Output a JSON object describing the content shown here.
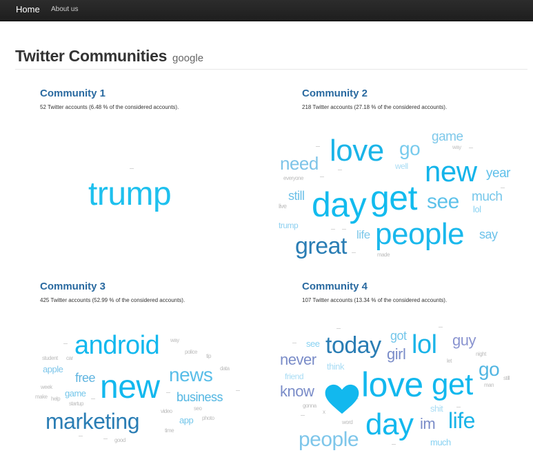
{
  "nav": {
    "home": "Home",
    "about": "About us"
  },
  "header": {
    "title": "Twitter Communities",
    "subtitle": "google"
  },
  "description_template": "Twitter accounts ({pct} % of the considered accounts).",
  "communities": [
    {
      "title": "Community 1",
      "accounts": "52",
      "percent": "6.48",
      "description": "52 Twitter accounts (6.48 % of the considered accounts).",
      "words": [
        {
          "text": "trump",
          "color": "#1ec0ee"
        }
      ]
    },
    {
      "title": "Community 2",
      "accounts": "218",
      "percent": "27.18",
      "description": "218 Twitter accounts (27.18 % of the considered accounts).",
      "words": [
        {
          "text": "love",
          "color": "#1ab4e8"
        },
        {
          "text": "go",
          "color": "#78cbed"
        },
        {
          "text": "game",
          "color": "#7ec8ea"
        },
        {
          "text": "way",
          "color": "#c0c0c0"
        },
        {
          "text": "need",
          "color": "#7ec4e8"
        },
        {
          "text": "well",
          "color": "#a8dcf4"
        },
        {
          "text": "new",
          "color": "#13b4ea"
        },
        {
          "text": "year",
          "color": "#5fc0ea"
        },
        {
          "text": "everyone",
          "color": "#bcbcbc"
        },
        {
          "text": "still",
          "color": "#6cc0e8"
        },
        {
          "text": "day",
          "color": "#12bbee"
        },
        {
          "text": "get",
          "color": "#12bbee"
        },
        {
          "text": "see",
          "color": "#5ec2ea"
        },
        {
          "text": "much",
          "color": "#74c6ea"
        },
        {
          "text": "live",
          "color": "#bcbcbc"
        },
        {
          "text": "lol",
          "color": "#88d2f2"
        },
        {
          "text": "trump",
          "color": "#8ed0f0"
        },
        {
          "text": "life",
          "color": "#7ec8ea"
        },
        {
          "text": "people",
          "color": "#1ab8ec"
        },
        {
          "text": "say",
          "color": "#6cc2ea"
        },
        {
          "text": "great",
          "color": "#2a7db4"
        },
        {
          "text": "made",
          "color": "#bcbcbc"
        }
      ]
    },
    {
      "title": "Community 3",
      "accounts": "425",
      "percent": "52.99",
      "description": "425 Twitter accounts (52.99 % of the considered accounts).",
      "words": [
        {
          "text": "android",
          "color": "#12b8ee"
        },
        {
          "text": "way",
          "color": "#bcbcbc"
        },
        {
          "text": "student",
          "color": "#bcbcbc"
        },
        {
          "text": "car",
          "color": "#bcbcbc"
        },
        {
          "text": "police",
          "color": "#bcbcbc"
        },
        {
          "text": "tip",
          "color": "#bcbcbc"
        },
        {
          "text": "apple",
          "color": "#7ec6ea"
        },
        {
          "text": "free",
          "color": "#5fb4e0"
        },
        {
          "text": "news",
          "color": "#58bde8"
        },
        {
          "text": "data",
          "color": "#bcbcbc"
        },
        {
          "text": "new",
          "color": "#12b8ee"
        },
        {
          "text": "week",
          "color": "#bcbcbc"
        },
        {
          "text": "game",
          "color": "#74c6ea"
        },
        {
          "text": "make",
          "color": "#bcbcbc"
        },
        {
          "text": "help",
          "color": "#bcbcbc"
        },
        {
          "text": "startup",
          "color": "#bcbcbc"
        },
        {
          "text": "business",
          "color": "#52b6e2"
        },
        {
          "text": "seo",
          "color": "#bcbcbc"
        },
        {
          "text": "marketing",
          "color": "#2a7db4"
        },
        {
          "text": "video",
          "color": "#bcbcbc"
        },
        {
          "text": "app",
          "color": "#74c6ea"
        },
        {
          "text": "photo",
          "color": "#bcbcbc"
        },
        {
          "text": "time",
          "color": "#bcbcbc"
        },
        {
          "text": "good",
          "color": "#bcbcbc"
        }
      ]
    },
    {
      "title": "Community 4",
      "accounts": "107",
      "percent": "13.34",
      "description": "107 Twitter accounts (13.34 % of the considered accounts).",
      "words": [
        {
          "text": "got",
          "color": "#74c6ea"
        },
        {
          "text": "see",
          "color": "#88d2f2"
        },
        {
          "text": "today",
          "color": "#2a7db4"
        },
        {
          "text": "girl",
          "color": "#7a8cc8"
        },
        {
          "text": "lol",
          "color": "#1ab4e8"
        },
        {
          "text": "guy",
          "color": "#8a94d0"
        },
        {
          "text": "night",
          "color": "#bcbcbc"
        },
        {
          "text": "never",
          "color": "#7a8cc8"
        },
        {
          "text": "think",
          "color": "#a8dcf4"
        },
        {
          "text": "let",
          "color": "#bcbcbc"
        },
        {
          "text": "go",
          "color": "#52b6e2"
        },
        {
          "text": "still",
          "color": "#bcbcbc"
        },
        {
          "text": "friend",
          "color": "#a8dcf4"
        },
        {
          "text": "man",
          "color": "#bcbcbc"
        },
        {
          "text": "know",
          "color": "#7a8cc8"
        },
        {
          "text": "love",
          "color": "#12b8ee"
        },
        {
          "text": "get",
          "color": "#12b8ee"
        },
        {
          "text": "gonna",
          "color": "#bcbcbc"
        },
        {
          "text": "x",
          "color": "#bcbcbc"
        },
        {
          "text": "shit",
          "color": "#a8dcf4"
        },
        {
          "text": "word",
          "color": "#bcbcbc"
        },
        {
          "text": "day",
          "color": "#12b8ee"
        },
        {
          "text": "im",
          "color": "#7a8cc8"
        },
        {
          "text": "life",
          "color": "#1ab4e8"
        },
        {
          "text": "people",
          "color": "#7ec6ea"
        },
        {
          "text": "much",
          "color": "#88d2f2"
        }
      ],
      "heart_color": "#12b8ee"
    }
  ],
  "tile_color": "#d4d4d4"
}
